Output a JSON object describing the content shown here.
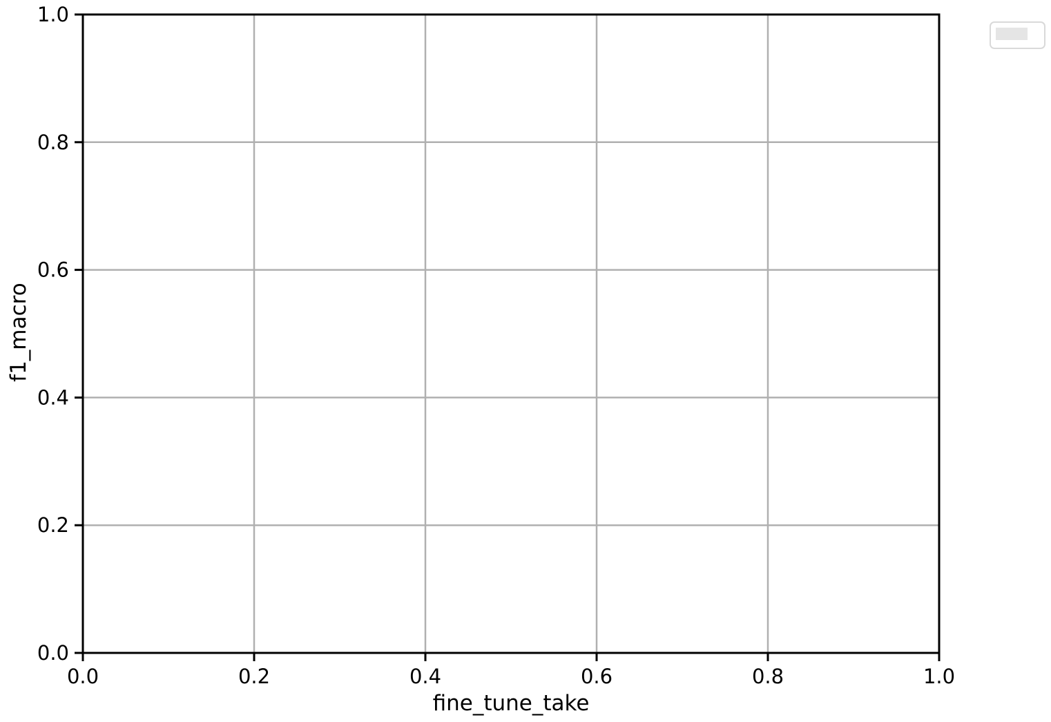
{
  "chart_data": {
    "type": "line",
    "title": "",
    "xlabel": "fine_tune_take",
    "ylabel": "f1_macro",
    "xlim": [
      0.0,
      1.0
    ],
    "ylim": [
      0.0,
      1.0
    ],
    "x_ticks": [
      0.0,
      0.2,
      0.4,
      0.6,
      0.8,
      1.0
    ],
    "y_ticks": [
      0.0,
      0.2,
      0.4,
      0.6,
      0.8,
      1.0
    ],
    "x_tick_labels": [
      "0.0",
      "0.2",
      "0.4",
      "0.6",
      "0.8",
      "1.0"
    ],
    "y_tick_labels": [
      "0.0",
      "0.2",
      "0.4",
      "0.6",
      "0.8",
      "1.0"
    ],
    "grid": true,
    "legend": {
      "placement": "outside-top-right",
      "entries": []
    },
    "series": []
  },
  "colors": {
    "grid": "#b0b0b0",
    "axis": "#000000",
    "legend_border": "#d9d9d9",
    "legend_swatch": "#e5e5e5"
  }
}
